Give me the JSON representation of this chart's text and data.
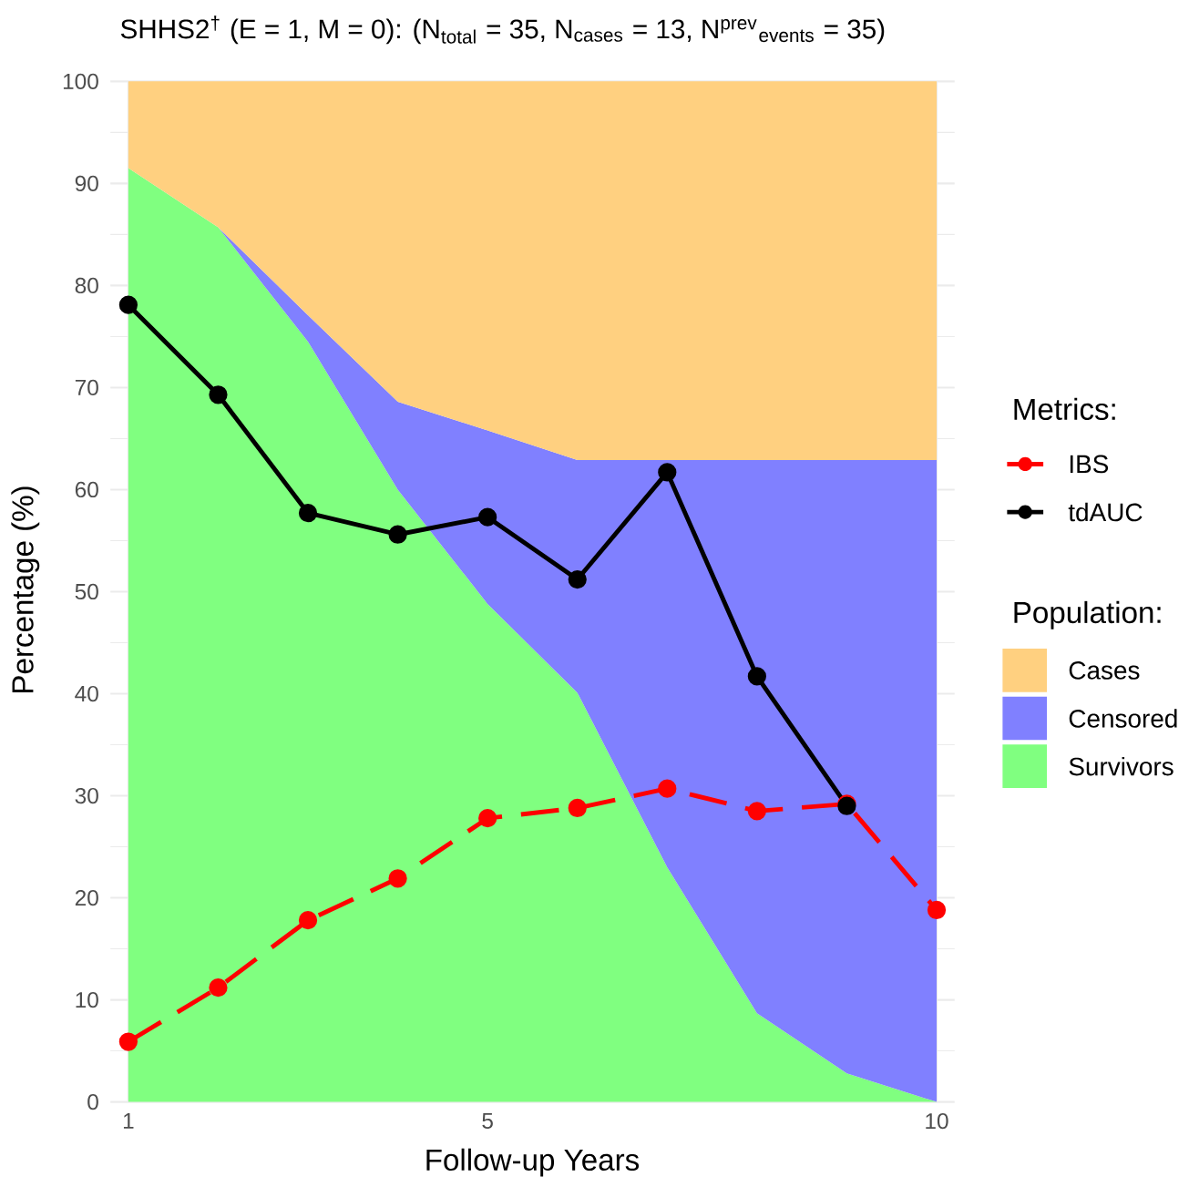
{
  "chart_data": {
    "type": "area",
    "title": "SHHS2$^{†}$ (E = 1, M = 0): (N$_{total}$ = 35, N$_{cases}$ = 13, N$^{prev}$$_{events}$ = 35)",
    "xlabel": "Follow-up Years",
    "ylabel": "Percentage (%)",
    "legend_title": "Metrics:",
    "annotations": [
      "Population:"
    ],
    "x": [
      1,
      2,
      3,
      4,
      5,
      6,
      7,
      8,
      9,
      10
    ],
    "stacked": true,
    "series": [
      {
        "name": "Survivors",
        "color": "#80ff80",
        "values": [
          91.5,
          85.7,
          74.5,
          60.0,
          48.8,
          40.1,
          23.0,
          8.7,
          2.8,
          0
        ]
      },
      {
        "name": "Censored",
        "color": "#8080ff",
        "values": [
          null,
          0,
          2.6,
          8.6,
          17.0,
          22.8,
          39.9,
          54.2,
          60.1,
          62.9
        ]
      },
      {
        "name": "Cases",
        "color": "#ffd080",
        "values": [
          8.5,
          14.3,
          22.9,
          31.4,
          34.2,
          37.1,
          37.1,
          37.1,
          37.1,
          37.1
        ]
      },
      {
        "name": "IBS",
        "type": "line",
        "color": "#ff0000",
        "line_style": "dashed",
        "marker": "circle",
        "values": [
          5.9,
          11.2,
          17.8,
          21.9,
          27.8,
          28.8,
          30.7,
          28.5,
          29.2,
          18.8
        ]
      },
      {
        "name": "tdAUC",
        "type": "line",
        "color": "#000000",
        "line_style": "solid",
        "marker": "circle",
        "values": [
          78.1,
          69.3,
          57.7,
          55.6,
          57.3,
          51.2,
          61.7,
          41.7,
          29.0,
          null
        ]
      }
    ],
    "grid": true,
    "legend": "right",
    "xlim": [
      0.8,
      10.2
    ],
    "ylim": [
      0,
      100
    ],
    "xticks": [
      1,
      5,
      10
    ],
    "yticks": [
      0,
      10,
      20,
      30,
      40,
      50,
      60,
      70,
      80,
      90,
      100
    ]
  }
}
